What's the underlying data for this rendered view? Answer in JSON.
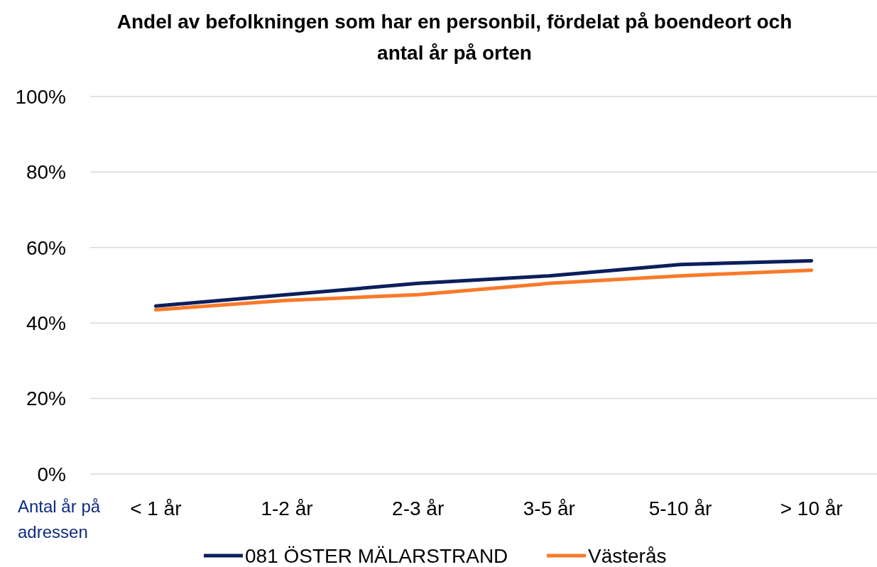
{
  "chart_data": {
    "type": "line",
    "title": "Andel av befolkningen som har en personbil, fördelat på boendeort och antal år på orten",
    "xlabel": "Antal år på adressen",
    "categories": [
      "< 1 år",
      "1-2 år",
      "2-3 år",
      "3-5 år",
      "5-10 år",
      "> 10 år"
    ],
    "series": [
      {
        "name": "081 ÖSTER MÄLARSTRAND",
        "color": "#0c1f5c",
        "values": [
          44.5,
          47.5,
          50.5,
          52.5,
          55.5,
          56.5
        ]
      },
      {
        "name": "Västerås",
        "color": "#f97a2a",
        "values": [
          43.5,
          46,
          47.5,
          50.5,
          52.5,
          54
        ]
      }
    ],
    "ylim": [
      0,
      100
    ],
    "yticks": [
      {
        "value": 0,
        "label": "0%"
      },
      {
        "value": 20,
        "label": "20%"
      },
      {
        "value": 40,
        "label": "40%"
      },
      {
        "value": 60,
        "label": "60%"
      },
      {
        "value": 80,
        "label": "80%"
      },
      {
        "value": 100,
        "label": "100%"
      }
    ],
    "grid": "y",
    "legend": "bottom",
    "marker": "none",
    "line_style": "solid"
  }
}
